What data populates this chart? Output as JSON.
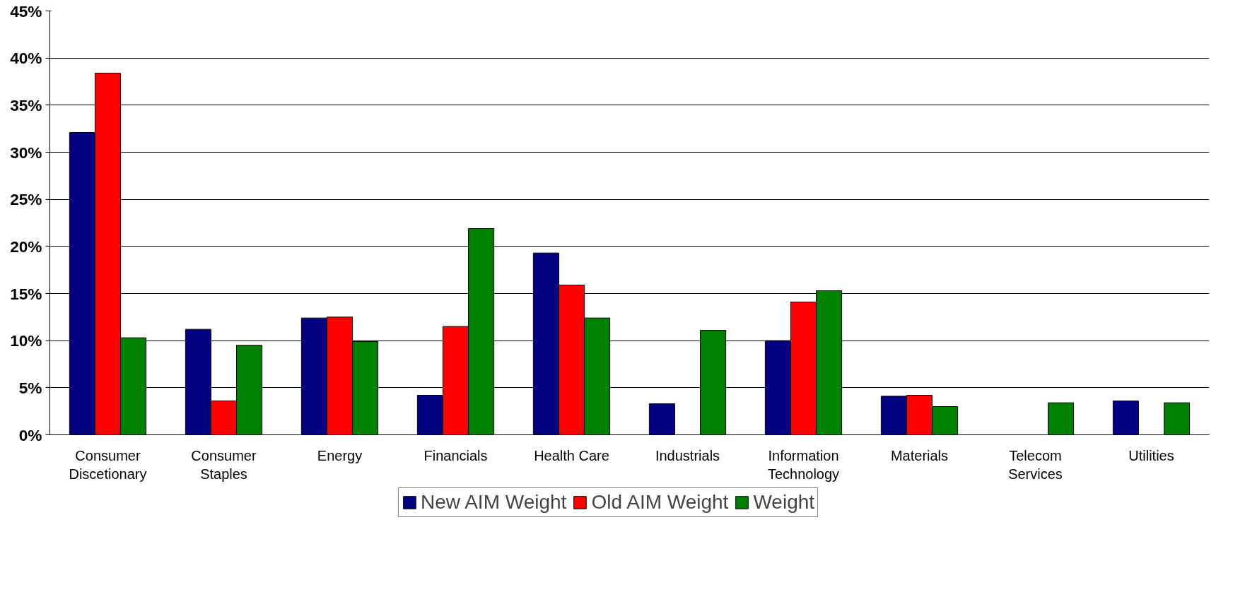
{
  "chart_data": {
    "type": "bar",
    "categories": [
      "Consumer\nDiscetionary",
      "Consumer\nStaples",
      "Energy",
      "Financials",
      "Health Care",
      "Industrials",
      "Information\nTechnology",
      "Materials",
      "Telecom\nServices",
      "Utilities"
    ],
    "series": [
      {
        "name": "New AIM Weight",
        "color": "#000080",
        "values": [
          32.1,
          11.2,
          12.4,
          4.2,
          19.3,
          3.3,
          10.0,
          4.1,
          null,
          3.6
        ]
      },
      {
        "name": "Old AIM Weight",
        "color": "#ff0000",
        "values": [
          38.4,
          3.6,
          12.5,
          11.5,
          15.9,
          null,
          14.1,
          4.2,
          null,
          null
        ]
      },
      {
        "name": "Weight",
        "color": "#008000",
        "values": [
          10.3,
          9.5,
          9.9,
          21.9,
          12.4,
          11.1,
          15.3,
          3.0,
          3.4,
          3.4
        ]
      }
    ],
    "ylim": [
      0,
      45
    ],
    "yticks": [
      {
        "value": 0,
        "label": "0%"
      },
      {
        "value": 5,
        "label": "5%"
      },
      {
        "value": 10,
        "label": "10%"
      },
      {
        "value": 15,
        "label": "15%"
      },
      {
        "value": 20,
        "label": "20%"
      },
      {
        "value": 25,
        "label": "25%"
      },
      {
        "value": 30,
        "label": "30%"
      },
      {
        "value": 35,
        "label": "35%"
      },
      {
        "value": 40,
        "label": "40%"
      },
      {
        "value": 45,
        "label": "45%"
      }
    ],
    "grid": "y",
    "legend": "bottom"
  }
}
